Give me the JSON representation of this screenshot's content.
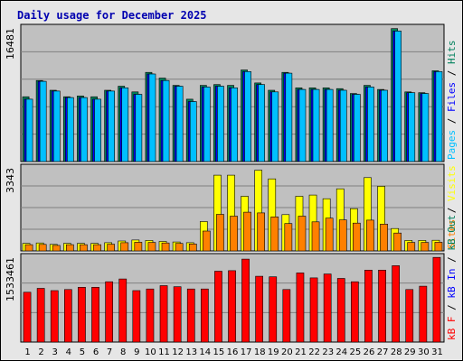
{
  "chart_data": {
    "type": "bar",
    "title": "Daily usage for December 2025",
    "categories": [
      "1",
      "2",
      "3",
      "4",
      "5",
      "6",
      "7",
      "8",
      "9",
      "10",
      "11",
      "12",
      "13",
      "14",
      "15",
      "16",
      "17",
      "18",
      "19",
      "20",
      "21",
      "22",
      "23",
      "24",
      "25",
      "26",
      "27",
      "28",
      "29",
      "30",
      "31"
    ],
    "weekend_days": [
      "6",
      "7",
      "13",
      "14",
      "20",
      "21",
      "27",
      "28"
    ],
    "colors": {
      "hits": "#00805c",
      "files": "#0000ff",
      "pages": "#00c0ff",
      "visits": "#ffff00",
      "sites": "#ff8000",
      "kb_in": "#ff0000",
      "kb_out": "#00805c",
      "kb_f": "#ff0000",
      "weekend": "#00805c",
      "panel_bg": "#c0c0c0",
      "title": "#0000b0"
    },
    "panels": [
      {
        "name": "pages-files-hits",
        "ymax_label": "16481",
        "ymax": 16481,
        "series": [
          {
            "name": "Hits",
            "values": [
              8000,
              10000,
              8800,
              8000,
              8100,
              8000,
              8800,
              9300,
              8600,
              11000,
              10300,
              9400,
              7700,
              9400,
              9500,
              9400,
              11300,
              9700,
              8800,
              11000,
              9100,
              9100,
              9100,
              9000,
              8400,
              9400,
              8900,
              16400,
              8600,
              8500,
              11200
            ]
          },
          {
            "name": "Files",
            "values": [
              7700,
              9900,
              8700,
              7900,
              7900,
              7700,
              8700,
              9100,
              8300,
              10800,
              10000,
              9300,
              7400,
              9200,
              9300,
              9100,
              11100,
              9500,
              8600,
              10900,
              8900,
              8900,
              8900,
              8800,
              8300,
              9200,
              8800,
              16100,
              8500,
              8400,
              11100
            ]
          },
          {
            "name": "Pages",
            "values": [
              7700,
              9900,
              8700,
              7900,
              7900,
              7700,
              8700,
              9100,
              8300,
              10800,
              10000,
              9300,
              7400,
              9200,
              9300,
              9100,
              11100,
              9500,
              8600,
              10900,
              8900,
              8900,
              8900,
              8800,
              8300,
              9200,
              8800,
              16100,
              8500,
              8400,
              11100
            ]
          }
        ],
        "legend": [
          "Pages",
          "Files",
          "Hits"
        ]
      },
      {
        "name": "visits-sites",
        "ymax_label": "3343",
        "ymax": 3343,
        "series": [
          {
            "name": "Visits",
            "values": [
              300,
              320,
              260,
              300,
              300,
              300,
              330,
              400,
              440,
              420,
              380,
              360,
              330,
              1180,
              3050,
              3050,
              2200,
              3250,
              2900,
              1460,
              2200,
              2250,
              2100,
              2500,
              1700,
              2950,
              2600,
              900,
              420,
              420,
              430
            ]
          },
          {
            "name": "Sites",
            "values": [
              250,
              260,
              220,
              250,
              250,
              250,
              270,
              330,
              350,
              340,
              320,
              300,
              280,
              800,
              1470,
              1400,
              1560,
              1530,
              1370,
              1100,
              1400,
              1170,
              1320,
              1250,
              1120,
              1240,
              1080,
              720,
              340,
              340,
              350
            ]
          }
        ],
        "legend": [
          "Sites",
          "Visits"
        ]
      },
      {
        "name": "kbytes",
        "ymax_label": "1533461",
        "ymax": 1533461,
        "series": [
          {
            "name": "kB F",
            "values": [
              900000,
              970000,
              930000,
              950000,
              990000,
              990000,
              1090000,
              1140000,
              930000,
              960000,
              1020000,
              1000000,
              960000,
              960000,
              1280000,
              1290000,
              1500000,
              1190000,
              1180000,
              950000,
              1250000,
              1160000,
              1230000,
              1150000,
              1090000,
              1300000,
              1300000,
              1380000,
              950000,
              1010000,
              1530000
            ]
          }
        ],
        "legend": [
          "kB F",
          "kB In",
          "kB Out"
        ]
      }
    ],
    "grid": true,
    "legend_position": "right"
  }
}
